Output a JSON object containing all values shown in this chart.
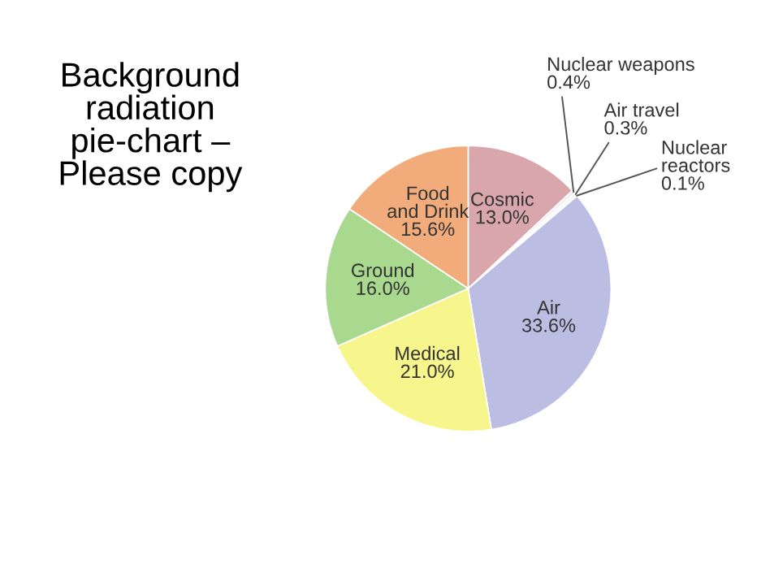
{
  "chart_data": {
    "type": "pie",
    "title": "Background\nradiation\npie-chart –\nPlease copy",
    "categories": [
      "Cosmic",
      "Nuclear weapons",
      "Air travel",
      "Nuclear\nreactors",
      "Air",
      "Medical",
      "Ground",
      "Food\nand Drink"
    ],
    "values": [
      13.0,
      0.4,
      0.3,
      0.1,
      33.6,
      21.0,
      16.0,
      15.6
    ],
    "value_labels": [
      "13.0%",
      "0.4%",
      "0.3%",
      "0.1%",
      "33.6%",
      "21.0%",
      "16.0%",
      "15.6%"
    ],
    "colors": [
      "#d9a6ac",
      "#f2eef0",
      "#f4f2f4",
      "#ece8ee",
      "#bbbde3",
      "#f6f68c",
      "#a9d98e",
      "#f2ac7c"
    ]
  }
}
